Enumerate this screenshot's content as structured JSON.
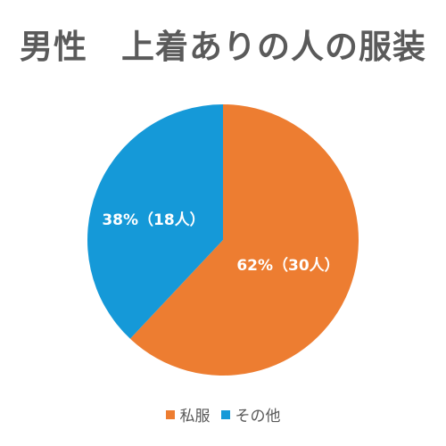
{
  "chart_data": {
    "type": "pie",
    "title": "男性　上着ありの人の服装",
    "categories": [
      "私服",
      "その他"
    ],
    "values": [
      62,
      38
    ],
    "counts": [
      30,
      18
    ],
    "data_labels": [
      "62%（30人）",
      "38%（18人）"
    ],
    "colors": [
      "#ED7D31",
      "#1599D8"
    ],
    "legend": {
      "placement": "bottom",
      "entries": [
        "私服",
        "その他"
      ]
    }
  }
}
